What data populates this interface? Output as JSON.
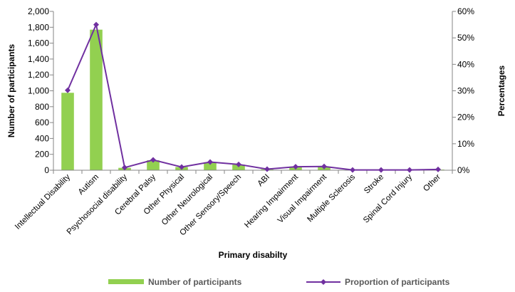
{
  "chart_data": {
    "type": "bar",
    "categories": [
      "Intellectual Disability",
      "Autism",
      "Psychosocial disability",
      "Cerebral Palsy",
      "Other Physical",
      "Other Neurological",
      "Other Sensory/Speech",
      "ABI",
      "Hearing Impairment",
      "Visual Impairment",
      "Multiple Sclerosis",
      "Stroke",
      "Spinal Cord Injury",
      "Other"
    ],
    "series": [
      {
        "name": "Number of participants",
        "type": "bar",
        "axis": "left",
        "color": "#92D050",
        "values": [
          975,
          1770,
          30,
          125,
          40,
          100,
          70,
          12,
          42,
          45,
          5,
          3,
          3,
          8
        ]
      },
      {
        "name": "Proportion of participants",
        "type": "line",
        "axis": "right",
        "color": "#7030A0",
        "values": [
          30.2,
          55.0,
          1.0,
          3.9,
          1.2,
          3.1,
          2.2,
          0.4,
          1.3,
          1.4,
          0.1,
          0.1,
          0.1,
          0.3
        ]
      }
    ],
    "xlabel": "Primary disabilty",
    "ylabel": "Number of participants",
    "y2label": "Percentages",
    "ylim": [
      0,
      2000
    ],
    "yticks": [
      "0",
      "200",
      "400",
      "600",
      "800",
      "1,000",
      "1,200",
      "1,400",
      "1,600",
      "1,800",
      "2,000"
    ],
    "y2lim": [
      0,
      60
    ],
    "y2ticks": [
      "0%",
      "10%",
      "20%",
      "30%",
      "40%",
      "50%",
      "60%"
    ],
    "grid": false,
    "legend": "bottom"
  }
}
